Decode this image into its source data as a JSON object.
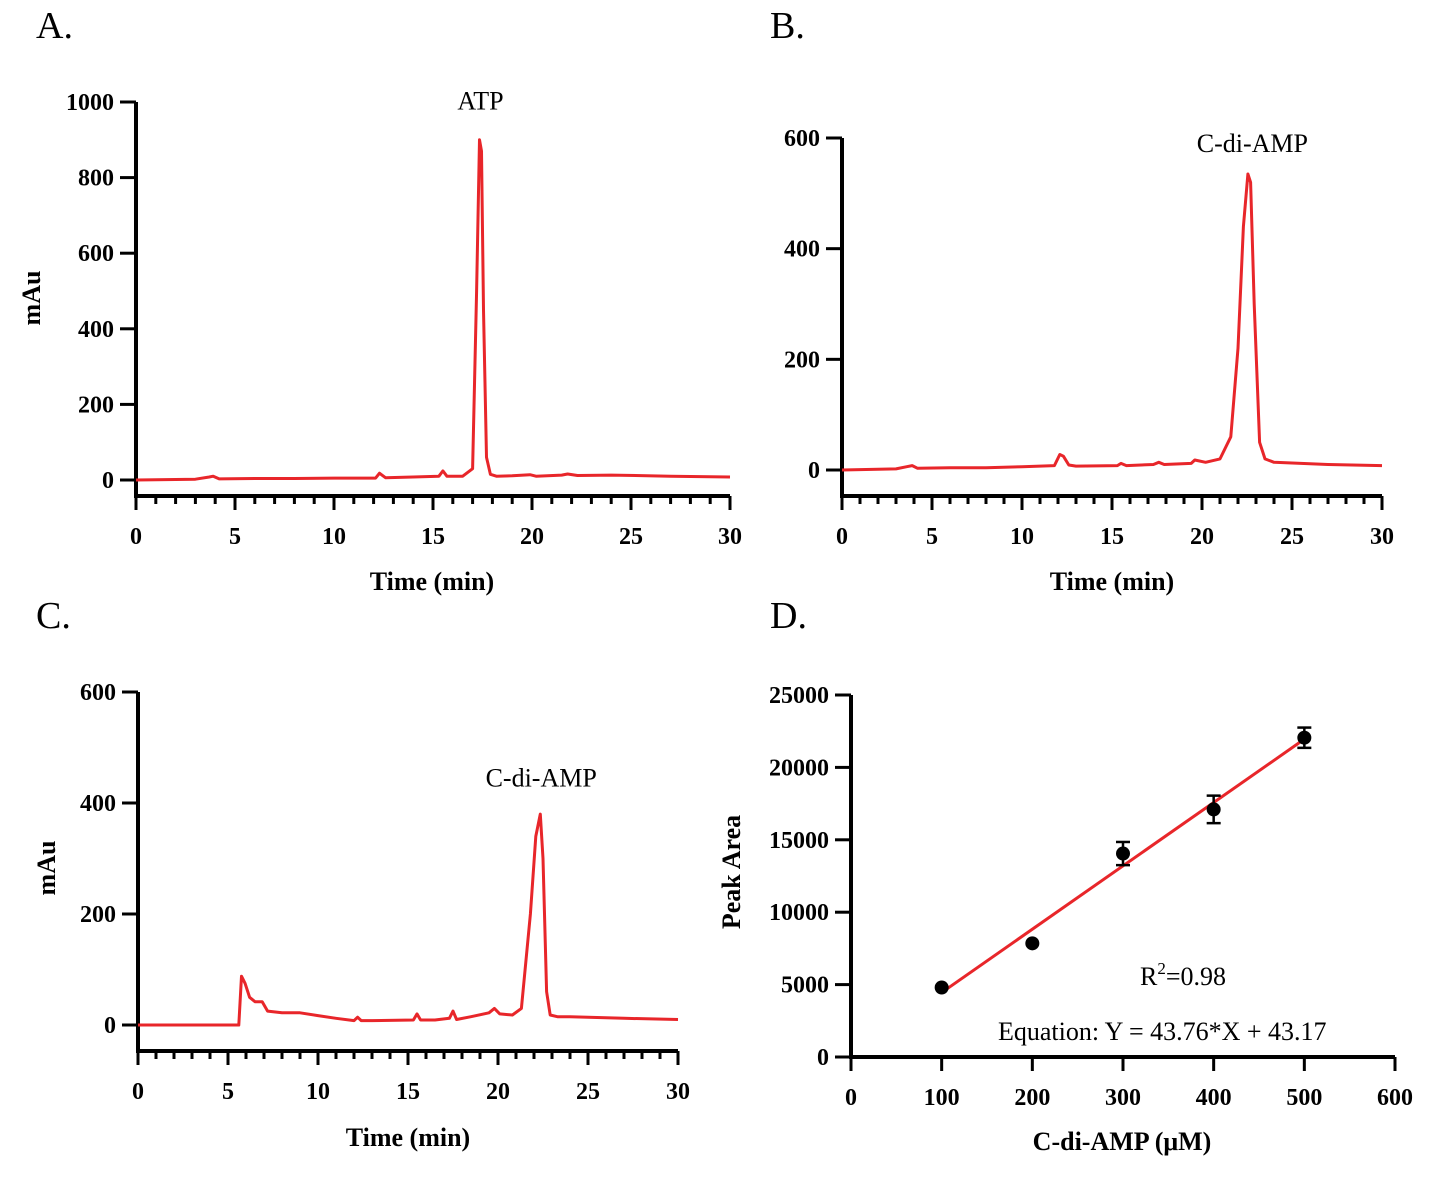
{
  "colors": {
    "trace": "#e8262a",
    "fit_line": "#e8262a",
    "points": "#000000",
    "axes": "#000000"
  },
  "chart_data": [
    {
      "panel": "A.",
      "type": "line",
      "xlabel": "Time (min)",
      "ylabel": "mAu",
      "xlim": [
        0,
        30
      ],
      "ylim": [
        0,
        1000
      ],
      "xticks": [
        0,
        5,
        10,
        15,
        20,
        25,
        30
      ],
      "yticks": [
        0,
        200,
        400,
        600,
        800,
        1000
      ],
      "annotations": [
        {
          "text": "ATP",
          "x": 17.4,
          "y": 980
        }
      ],
      "series": [
        {
          "x": [
            0,
            3,
            3.7,
            3.9,
            4.2,
            6,
            8,
            10,
            12.1,
            12.3,
            12.6,
            14,
            15.3,
            15.5,
            15.7,
            16.5,
            17.0,
            17.2,
            17.35,
            17.45,
            17.55,
            17.7,
            17.9,
            18.2,
            19,
            19.9,
            20.2,
            21.5,
            21.8,
            22.3,
            24,
            27,
            30
          ],
          "y": [
            0,
            2,
            8,
            10,
            3,
            4,
            4,
            5,
            5,
            18,
            6,
            8,
            10,
            24,
            10,
            10,
            30,
            500,
            900,
            870,
            450,
            60,
            15,
            10,
            11,
            14,
            10,
            13,
            16,
            12,
            13,
            10,
            8
          ]
        }
      ]
    },
    {
      "panel": "B.",
      "type": "line",
      "xlabel": "Time (min)",
      "ylabel": "",
      "xlim": [
        0,
        30
      ],
      "ylim": [
        -50,
        600
      ],
      "xticks": [
        0,
        5,
        10,
        15,
        20,
        25,
        30
      ],
      "yticks": [
        0,
        200,
        400,
        600
      ],
      "annotations": [
        {
          "text": "C-di-AMP",
          "x": 22.8,
          "y": 575
        }
      ],
      "series": [
        {
          "x": [
            0,
            3,
            3.6,
            3.9,
            4.2,
            6,
            8,
            10,
            11.8,
            12.1,
            12.3,
            12.6,
            13,
            15.3,
            15.5,
            15.8,
            17.3,
            17.6,
            17.9,
            19.4,
            19.6,
            20.2,
            21.0,
            21.6,
            22.0,
            22.3,
            22.55,
            22.7,
            22.9,
            23.2,
            23.5,
            24,
            27,
            30
          ],
          "y": [
            0,
            2,
            6,
            8,
            3,
            4,
            4,
            6,
            8,
            28,
            25,
            9,
            7,
            8,
            12,
            8,
            10,
            14,
            10,
            12,
            18,
            14,
            20,
            60,
            220,
            440,
            535,
            520,
            300,
            50,
            20,
            14,
            10,
            8
          ]
        }
      ]
    },
    {
      "panel": "C.",
      "type": "line",
      "xlabel": "Time (min)",
      "ylabel": "mAu",
      "xlim": [
        0,
        30
      ],
      "ylim": [
        -50,
        600
      ],
      "xticks": [
        0,
        5,
        10,
        15,
        20,
        25,
        30
      ],
      "yticks": [
        0,
        200,
        400,
        600
      ],
      "annotations": [
        {
          "text": "C-di-AMP",
          "x": 22.4,
          "y": 430
        }
      ],
      "series": [
        {
          "x": [
            0,
            5.6,
            5.75,
            5.95,
            6.2,
            6.5,
            6.9,
            7.2,
            8.0,
            9.0,
            10,
            11,
            12.0,
            12.2,
            12.4,
            13,
            15.3,
            15.5,
            15.7,
            16.5,
            17.3,
            17.5,
            17.7,
            18.5,
            19.5,
            19.8,
            20.1,
            20.8,
            21.3,
            21.8,
            22.1,
            22.35,
            22.5,
            22.7,
            22.9,
            23.3,
            24,
            27,
            30
          ],
          "y": [
            0,
            0,
            88,
            75,
            50,
            42,
            42,
            25,
            22,
            22,
            17,
            12,
            8,
            14,
            8,
            8,
            9,
            20,
            9,
            9,
            12,
            25,
            10,
            15,
            22,
            30,
            20,
            18,
            30,
            200,
            340,
            380,
            300,
            60,
            18,
            15,
            15,
            12,
            10
          ]
        }
      ]
    },
    {
      "panel": "D.",
      "type": "scatter",
      "xlabel": "C-di-AMP (μM)",
      "ylabel": "Peak Area",
      "xlim": [
        0,
        600
      ],
      "ylim": [
        0,
        25000
      ],
      "xticks": [
        0,
        100,
        200,
        300,
        400,
        500,
        600
      ],
      "yticks": [
        0,
        5000,
        10000,
        15000,
        20000,
        25000
      ],
      "points": [
        {
          "x": 100,
          "y": 4800,
          "err": 0
        },
        {
          "x": 200,
          "y": 7850,
          "err": 0
        },
        {
          "x": 300,
          "y": 14050,
          "err": 800
        },
        {
          "x": 400,
          "y": 17100,
          "err": 950
        },
        {
          "x": 500,
          "y": 22050,
          "err": 700
        }
      ],
      "fit": {
        "x": [
          100,
          500
        ],
        "y": [
          4450,
          21950
        ]
      },
      "r_squared_label": "=0.98",
      "r_squared_prefix": "R",
      "r_squared_sup": "2",
      "equation": "Equation: Y = 43.76*X + 43.17"
    }
  ]
}
